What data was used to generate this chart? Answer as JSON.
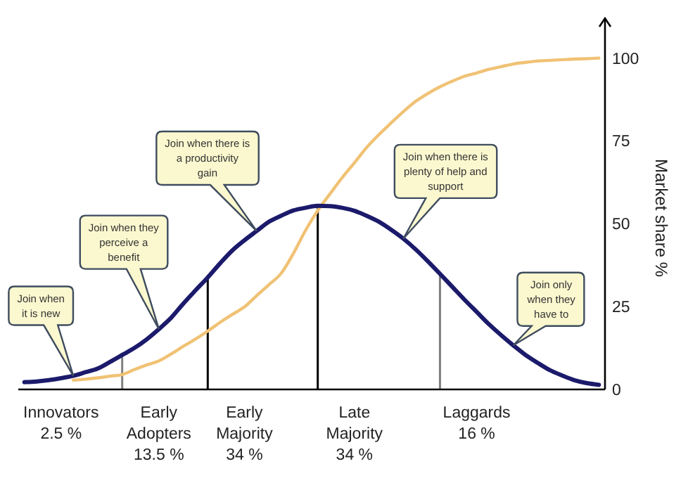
{
  "chart_data": {
    "type": "line",
    "ylabel": "Market share %",
    "ylim": [
      0,
      112
    ],
    "categories": [
      null,
      null,
      null,
      "Innovators\n2.5 %",
      null,
      null,
      null,
      null,
      null,
      null,
      null,
      "Early\nAdopters\n13.5 %",
      null,
      null,
      null,
      null,
      null,
      null,
      "Early\nMajority\n34 %",
      null,
      null,
      null,
      null,
      null,
      null,
      null,
      null,
      "Late\nMajority\n34 %",
      null,
      null,
      null,
      null,
      null,
      null,
      null,
      null,
      null,
      "Laggards\n16 %",
      null,
      null,
      null,
      null,
      null,
      null,
      null,
      null,
      null,
      null
    ],
    "yticks": [
      0,
      25,
      50,
      75,
      100
    ],
    "series": [
      {
        "type": "bar",
        "values": [
          null,
          null,
          null,
          null,
          null,
          null,
          null,
          null,
          10.4,
          null,
          null,
          null,
          null,
          null,
          null,
          33.8,
          null,
          null,
          null,
          null,
          null,
          null,
          null,
          null,
          55.4,
          null,
          null,
          null,
          null,
          null,
          null,
          null,
          null,
          null,
          34.9,
          null,
          null,
          null,
          null,
          null,
          null,
          null,
          null,
          null,
          null,
          null,
          null,
          null
        ],
        "colors": [
          null,
          null,
          null,
          null,
          null,
          null,
          null,
          null,
          "#808080",
          null,
          null,
          null,
          null,
          null,
          null,
          "#000000",
          null,
          null,
          null,
          null,
          null,
          null,
          null,
          null,
          "#000000",
          null,
          null,
          null,
          null,
          null,
          null,
          null,
          null,
          null,
          "#808080",
          null,
          null,
          null,
          null,
          null,
          null,
          null,
          null,
          null,
          null,
          null,
          null,
          null
        ]
      },
      {
        "color": "#f0c274",
        "values": [
          null,
          null,
          null,
          null,
          2.8,
          3.1,
          3.5,
          4.0,
          4.5,
          6.0,
          7.4,
          8.6,
          10.7,
          13.0,
          15.2,
          17.6,
          20.2,
          22.6,
          24.9,
          28.3,
          31.6,
          35,
          41,
          48,
          54,
          59,
          63.9,
          68.4,
          73,
          76.9,
          80.4,
          83.8,
          86.9,
          89.3,
          91.3,
          93.0,
          94.5,
          95.5,
          96.6,
          97.4,
          98.2,
          98.7,
          99.1,
          99.3,
          99.5,
          99.7,
          99.8,
          100
        ]
      },
      {
        "color": "#1b1a6b",
        "values": [
          2.2,
          2.4,
          2.8,
          3.4,
          4.1,
          5.2,
          6.3,
          8.3,
          10.4,
          12.5,
          15.1,
          18.2,
          21.6,
          25.9,
          29.9,
          33.8,
          38.0,
          41.9,
          45.0,
          47.8,
          50.6,
          52.4,
          54.0,
          54.8,
          55.4,
          55.3,
          54.8,
          53.9,
          52.4,
          50.6,
          48.2,
          45.5,
          42.3,
          38.7,
          34.9,
          31.0,
          27.1,
          23.4,
          19.7,
          16.4,
          13.3,
          10.4,
          8.0,
          5.8,
          4.2,
          2.8,
          1.9,
          1.4
        ]
      }
    ],
    "annotations": [
      "Join when\nit is new",
      "Join when they\nperceive a\nbenefit",
      "Join when there is\na productivity\ngain",
      "Join when there is\nplenty of help and\nsupport",
      "Join only\nwhen they\nhave to"
    ],
    "grid": false,
    "marker": "none",
    "line_style": "solid"
  }
}
